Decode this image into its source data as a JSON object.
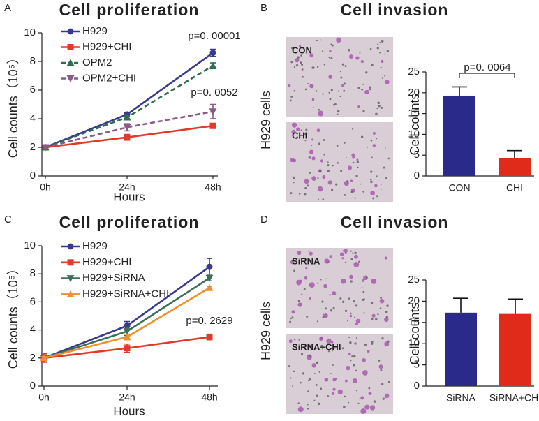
{
  "chart_data": [
    {
      "type": "line",
      "panel": "A",
      "title": "Cell proliferation",
      "x_label": "Hours",
      "y_label": "Cell counts（10⁵）",
      "categories": [
        "0h",
        "24h",
        "48h"
      ],
      "ylim": [
        0,
        10
      ],
      "yticks": [
        0,
        2,
        4,
        6,
        8,
        10
      ],
      "series": [
        {
          "name": "H929",
          "color": "#3a3a8c",
          "marker": "circle",
          "dashed": false,
          "values": [
            2,
            4.3,
            8.6
          ],
          "errors": [
            0.1,
            0.1,
            0.25
          ]
        },
        {
          "name": "H929+CHI",
          "color": "#e03a2a",
          "marker": "square",
          "dashed": false,
          "values": [
            2,
            2.7,
            3.5
          ],
          "errors": [
            0.1,
            0.2,
            0.15
          ]
        },
        {
          "name": "OPM2",
          "color": "#2f6e4e",
          "marker": "triangle-up",
          "dashed": true,
          "values": [
            2,
            4.1,
            7.7
          ],
          "errors": [
            0.1,
            0.1,
            0.2
          ]
        },
        {
          "name": "OPM2+CHI",
          "color": "#8a5a8a",
          "marker": "triangle-down",
          "dashed": true,
          "values": [
            2,
            3.4,
            4.5
          ],
          "errors": [
            0.1,
            0.25,
            0.5
          ]
        }
      ],
      "annotations": [
        "p=0. 00001",
        "p=0. 0052"
      ]
    },
    {
      "type": "bar",
      "panel": "B",
      "title": "Cell invasion",
      "side_label": "H929 cells",
      "images": [
        "CON",
        "CHI"
      ],
      "y_label": "Cell counts",
      "categories": [
        "CON",
        "CHI"
      ],
      "values": [
        19.3,
        4.3
      ],
      "errors": [
        2.1,
        1.8
      ],
      "colors": [
        "#2a2a8a",
        "#e02a1a"
      ],
      "ylim": [
        0,
        25
      ],
      "yticks": [
        0,
        5,
        10,
        15,
        20,
        25
      ],
      "annotations": [
        "p=0. 0064"
      ]
    },
    {
      "type": "line",
      "panel": "C",
      "title": "Cell proliferation",
      "x_label": "Hours",
      "y_label": "Cell counts（10⁵）",
      "categories": [
        "0h",
        "24h",
        "48h"
      ],
      "ylim": [
        0,
        10
      ],
      "yticks": [
        0,
        2,
        4,
        6,
        8,
        10
      ],
      "series": [
        {
          "name": "H929",
          "color": "#3a3a8c",
          "marker": "circle",
          "dashed": false,
          "values": [
            2,
            4.3,
            8.5
          ],
          "errors": [
            0.3,
            0.3,
            0.6
          ]
        },
        {
          "name": "H929+CHI",
          "color": "#e03a2a",
          "marker": "square",
          "dashed": false,
          "values": [
            2,
            2.7,
            3.5
          ],
          "errors": [
            0.3,
            0.3,
            0.2
          ]
        },
        {
          "name": "H929+SiRNA",
          "color": "#3e6e5a",
          "marker": "triangle-down",
          "dashed": false,
          "values": [
            2,
            3.9,
            7.7
          ],
          "errors": [
            0.2,
            0.3,
            0.2
          ]
        },
        {
          "name": "H929+SiRNA+CHI",
          "color": "#f0902a",
          "marker": "triangle-up",
          "dashed": false,
          "values": [
            2,
            3.5,
            7.0
          ],
          "errors": [
            0.1,
            0.2,
            0.1
          ]
        }
      ],
      "annotations": [
        "p=0. 2629"
      ]
    },
    {
      "type": "bar",
      "panel": "D",
      "title": "Cell invasion",
      "side_label": "H929 cells",
      "images": [
        "SiRNA",
        "SiRNA+CHI"
      ],
      "y_label": "Cell counts",
      "categories": [
        "SiRNA",
        "SiRNA+CHI"
      ],
      "values": [
        17.3,
        17.0
      ],
      "errors": [
        3.4,
        3.5
      ],
      "colors": [
        "#2a2a8a",
        "#e02a1a"
      ],
      "ylim": [
        0,
        25
      ],
      "yticks": [
        0,
        5,
        10,
        15,
        20,
        25
      ]
    }
  ]
}
